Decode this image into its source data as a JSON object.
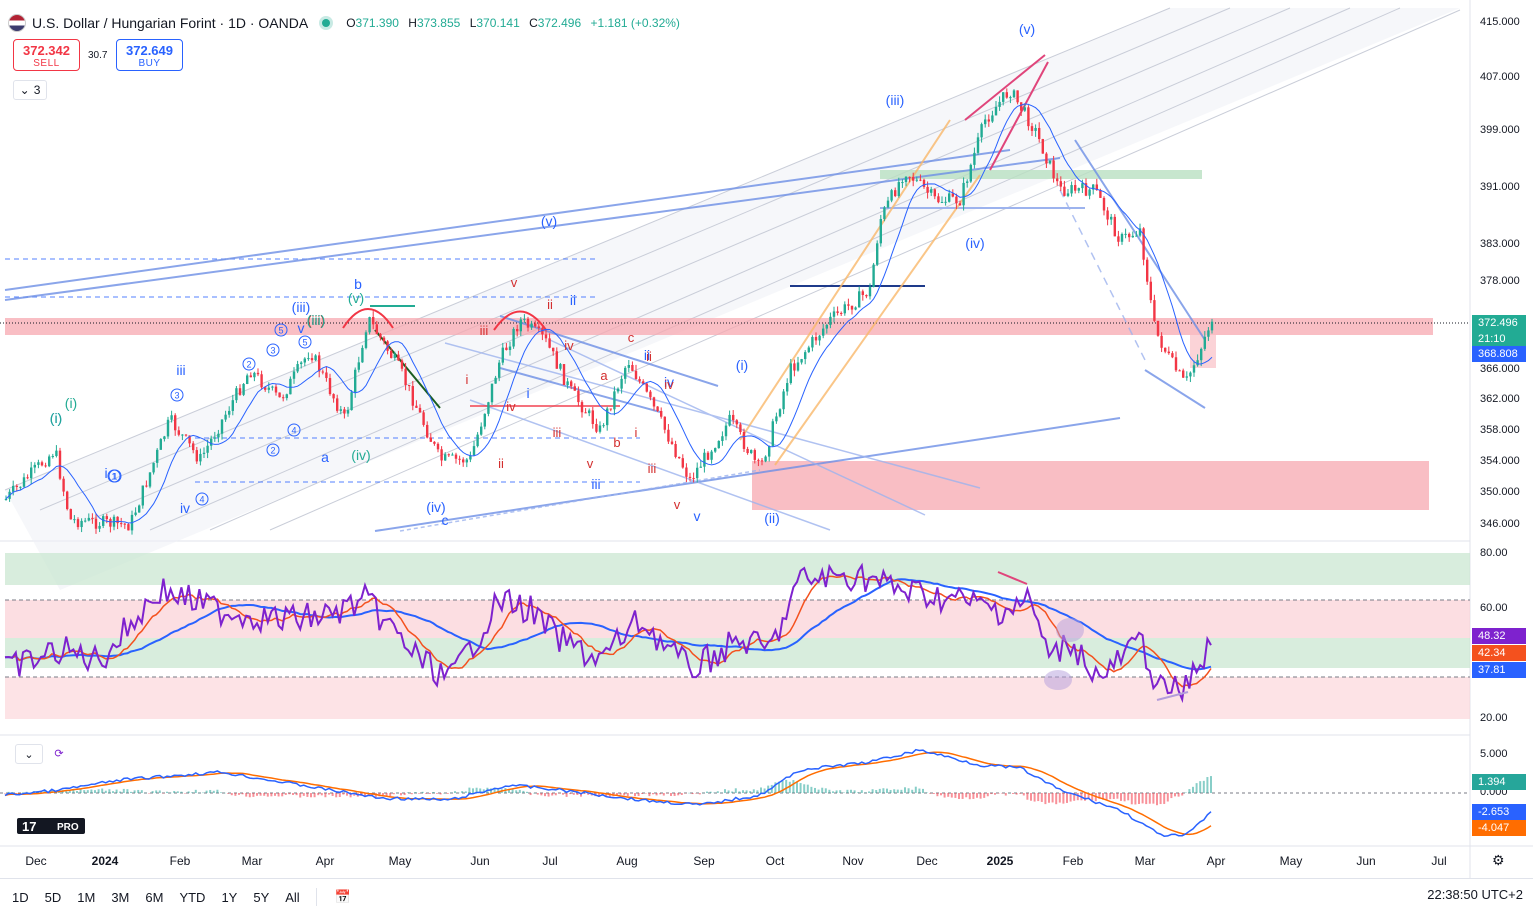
{
  "header": {
    "title": "U.S. Dollar / Hungarian Forint · 1D · OANDA",
    "ohlc": [
      {
        "k": "O",
        "v": "371.390"
      },
      {
        "k": "H",
        "v": "373.855"
      },
      {
        "k": "L",
        "v": "370.141"
      },
      {
        "k": "C",
        "v": "372.496"
      }
    ],
    "change": "+1.181 (+0.32%)"
  },
  "trade": {
    "sell_price": "372.342",
    "sell_label": "SELL",
    "spread": "30.7",
    "buy_price": "372.649",
    "buy_label": "BUY"
  },
  "indicator_collapse": "3",
  "price_axis": {
    "labels": [
      "415.000",
      "407.000",
      "399.000",
      "391.000",
      "383.000",
      "378.000",
      "366.000",
      "362.000",
      "358.000",
      "354.000",
      "350.000",
      "346.000"
    ],
    "last_price": "372.496",
    "countdown": "21:10",
    "ma_value": "368.808"
  },
  "rsi_axis": {
    "labels": [
      "80.00",
      "60.00",
      "20.00"
    ],
    "rsi": "48.32",
    "signal": "42.34",
    "base": "37.81"
  },
  "macd_axis": {
    "labels": [
      "5.000",
      "0.000"
    ],
    "hist": "1.394",
    "macd": "-2.653",
    "signal": "-4.047"
  },
  "time_axis": [
    "Dec",
    "2024",
    "Feb",
    "Mar",
    "Apr",
    "May",
    "Jun",
    "Jul",
    "Aug",
    "Sep",
    "Oct",
    "Nov",
    "Dec",
    "2025",
    "Feb",
    "Mar",
    "Apr",
    "May",
    "Jun",
    "Jul"
  ],
  "wave_labels_blue": [
    "(v)",
    "(iii)",
    "(i)",
    "(iv)",
    "(ii)",
    "(v)",
    "(iii)",
    "(v)",
    "(i)",
    "(iv)",
    "iii",
    "ii",
    "i",
    "iv",
    "v",
    "a",
    "c",
    "b",
    "(iv)",
    "i",
    "ii",
    "iii",
    "iv",
    "v",
    "(i)",
    "(ii)"
  ],
  "wave_labels_red": [
    "v",
    "iii",
    "ii",
    "iv",
    "i",
    "ii",
    "v",
    "iii",
    "iv",
    "c",
    "a",
    "b",
    "i",
    "ii",
    "iv",
    "iii",
    "v",
    "iii"
  ],
  "wave_labels_green": [
    "(v)",
    "(iii)",
    "(iv)",
    "(i)",
    "(i)",
    "(iii)"
  ],
  "circled": [
    "1",
    "2",
    "3",
    "4",
    "5",
    "4",
    "5",
    "3",
    "2",
    "1"
  ],
  "timeframes": [
    "1D",
    "5D",
    "1M",
    "3M",
    "6M",
    "YTD",
    "1Y",
    "5Y",
    "All"
  ],
  "clock": "22:38:50 UTC+2",
  "colors": {
    "up": "#22ab94",
    "down": "#f23645",
    "blue": "#2962ff",
    "rsi": "#7e22ce",
    "rsi_ma": "#f4511e",
    "macd": "#2962ff",
    "macd_signal": "#ff6d00"
  }
}
